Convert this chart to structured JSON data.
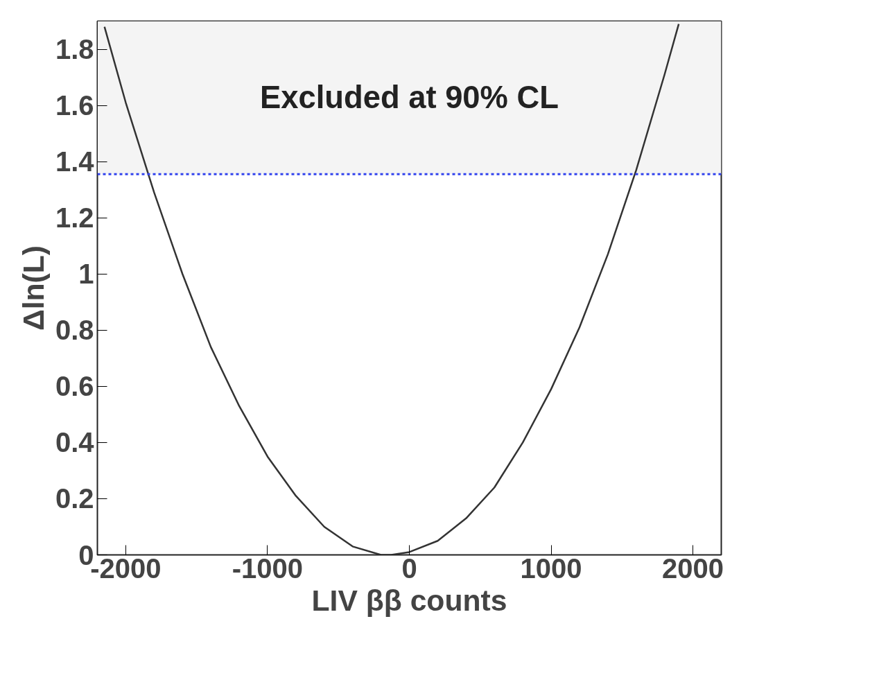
{
  "chart_data": {
    "type": "line",
    "xlabel": "LIV ββ counts",
    "ylabel": "Δln(L)",
    "x": [
      -2150,
      -2000,
      -1800,
      -1600,
      -1400,
      -1200,
      -1000,
      -800,
      -600,
      -400,
      -200,
      -128,
      0,
      200,
      400,
      600,
      800,
      1000,
      1200,
      1400,
      1600,
      1800,
      1900
    ],
    "series": [
      {
        "color": "#333333",
        "values": [
          1.88,
          1.61,
          1.29,
          1.0,
          0.74,
          0.53,
          0.35,
          0.21,
          0.1,
          0.03,
          0.0,
          0.0,
          0.01,
          0.05,
          0.13,
          0.24,
          0.4,
          0.59,
          0.81,
          1.07,
          1.37,
          1.71,
          1.89
        ]
      }
    ],
    "xlim": [
      -2200,
      2200
    ],
    "ylim": [
      0,
      1.9
    ],
    "xticks": [
      -2000,
      -1000,
      0,
      1000,
      2000
    ],
    "yticks": [
      0,
      0.2,
      0.4,
      0.6,
      0.8,
      1,
      1.2,
      1.4,
      1.6,
      1.8
    ],
    "ref_lines": [
      {
        "axis": "y",
        "value": 1.355,
        "color": "#3344ee",
        "line_style": "dashed"
      }
    ],
    "bands": [
      {
        "axis": "y",
        "from": 1.355,
        "to": 1.9,
        "label": "Excluded at 90% CL",
        "color": "#f4f4f4"
      }
    ],
    "grid": false,
    "marker": "none",
    "line_style": "solid"
  }
}
